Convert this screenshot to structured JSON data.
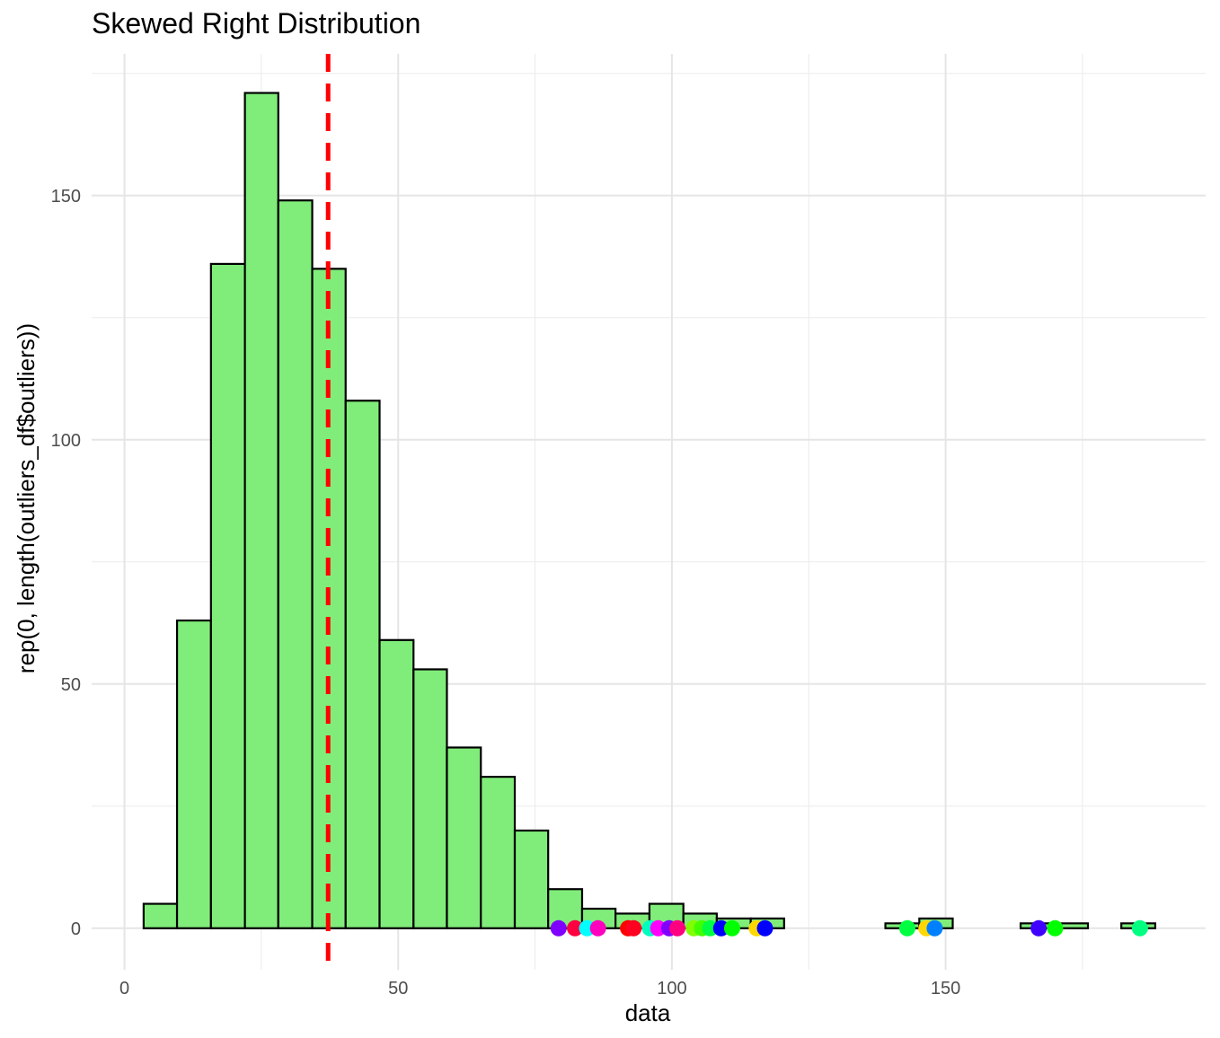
{
  "chart_data": {
    "type": "histogram",
    "title": "Skewed Right Distribution",
    "xlabel": "data",
    "ylabel": "rep(0, length(outliers_df$outliers))",
    "xlim": [
      -6,
      197.5
    ],
    "ylim": [
      -8.5,
      179
    ],
    "x_ticks": [
      0,
      50,
      100,
      150
    ],
    "x_tick_labels": [
      "0",
      "50",
      "100",
      "150"
    ],
    "y_ticks": [
      0,
      50,
      100,
      150
    ],
    "y_tick_labels": [
      "0",
      "50",
      "100",
      "150"
    ],
    "grid": true,
    "bar_fill": "#80ED7A",
    "bar_stroke": "#000000",
    "bins": [
      {
        "x0": 3.5,
        "x1": 9.6,
        "count": 5
      },
      {
        "x0": 9.6,
        "x1": 15.8,
        "count": 63
      },
      {
        "x0": 15.8,
        "x1": 22.0,
        "count": 136
      },
      {
        "x0": 22.0,
        "x1": 28.1,
        "count": 171
      },
      {
        "x0": 28.1,
        "x1": 34.3,
        "count": 149
      },
      {
        "x0": 34.3,
        "x1": 40.4,
        "count": 135
      },
      {
        "x0": 40.4,
        "x1": 46.6,
        "count": 108
      },
      {
        "x0": 46.6,
        "x1": 52.8,
        "count": 59
      },
      {
        "x0": 52.8,
        "x1": 58.9,
        "count": 53
      },
      {
        "x0": 58.9,
        "x1": 65.1,
        "count": 37
      },
      {
        "x0": 65.1,
        "x1": 71.3,
        "count": 31
      },
      {
        "x0": 71.3,
        "x1": 77.4,
        "count": 20
      },
      {
        "x0": 77.4,
        "x1": 83.6,
        "count": 8
      },
      {
        "x0": 83.6,
        "x1": 89.7,
        "count": 4
      },
      {
        "x0": 89.7,
        "x1": 95.9,
        "count": 3
      },
      {
        "x0": 95.9,
        "x1": 102.1,
        "count": 5
      },
      {
        "x0": 102.1,
        "x1": 108.2,
        "count": 3
      },
      {
        "x0": 108.2,
        "x1": 114.4,
        "count": 2
      },
      {
        "x0": 114.4,
        "x1": 120.5,
        "count": 2
      },
      {
        "x0": 120.5,
        "x1": 126.7,
        "count": 0
      },
      {
        "x0": 126.7,
        "x1": 132.9,
        "count": 0
      },
      {
        "x0": 132.9,
        "x1": 139.0,
        "count": 0
      },
      {
        "x0": 139.0,
        "x1": 145.2,
        "count": 1
      },
      {
        "x0": 145.2,
        "x1": 151.3,
        "count": 2
      },
      {
        "x0": 151.3,
        "x1": 157.5,
        "count": 0
      },
      {
        "x0": 157.5,
        "x1": 163.7,
        "count": 0
      },
      {
        "x0": 163.7,
        "x1": 169.8,
        "count": 1
      },
      {
        "x0": 169.8,
        "x1": 176.0,
        "count": 1
      },
      {
        "x0": 176.0,
        "x1": 182.1,
        "count": 0
      },
      {
        "x0": 182.1,
        "x1": 188.3,
        "count": 1
      }
    ],
    "mean_line": {
      "x": 37.2,
      "color": "#FF0000",
      "style": "dashed"
    },
    "outlier_points": [
      {
        "x": 79.3,
        "y": 0,
        "color": "#7F00FF"
      },
      {
        "x": 82.3,
        "y": 0,
        "color": "#FF0040"
      },
      {
        "x": 84.5,
        "y": 0,
        "color": "#00FFFF"
      },
      {
        "x": 86.5,
        "y": 0,
        "color": "#FF00BF"
      },
      {
        "x": 92.0,
        "y": 0,
        "color": "#FF0000"
      },
      {
        "x": 93.0,
        "y": 0,
        "color": "#FF0020"
      },
      {
        "x": 96.0,
        "y": 0,
        "color": "#00FFBF"
      },
      {
        "x": 97.5,
        "y": 0,
        "color": "#FF00FF"
      },
      {
        "x": 99.5,
        "y": 0,
        "color": "#8000FF"
      },
      {
        "x": 101.0,
        "y": 0,
        "color": "#FF0080"
      },
      {
        "x": 104.0,
        "y": 0,
        "color": "#80FF00"
      },
      {
        "x": 105.5,
        "y": 0,
        "color": "#40FF00"
      },
      {
        "x": 107.0,
        "y": 0,
        "color": "#00FF40"
      },
      {
        "x": 109.0,
        "y": 0,
        "color": "#0000FF"
      },
      {
        "x": 111.0,
        "y": 0,
        "color": "#00FF00"
      },
      {
        "x": 115.5,
        "y": 0,
        "color": "#FFD700"
      },
      {
        "x": 117.0,
        "y": 0,
        "color": "#0000FF"
      },
      {
        "x": 143.0,
        "y": 0,
        "color": "#00FF40"
      },
      {
        "x": 146.5,
        "y": 0,
        "color": "#FFD700"
      },
      {
        "x": 148.0,
        "y": 0,
        "color": "#0080FF"
      },
      {
        "x": 167.0,
        "y": 0,
        "color": "#4000FF"
      },
      {
        "x": 170.0,
        "y": 0,
        "color": "#00FF00"
      },
      {
        "x": 185.5,
        "y": 0,
        "color": "#00FF80"
      }
    ]
  }
}
